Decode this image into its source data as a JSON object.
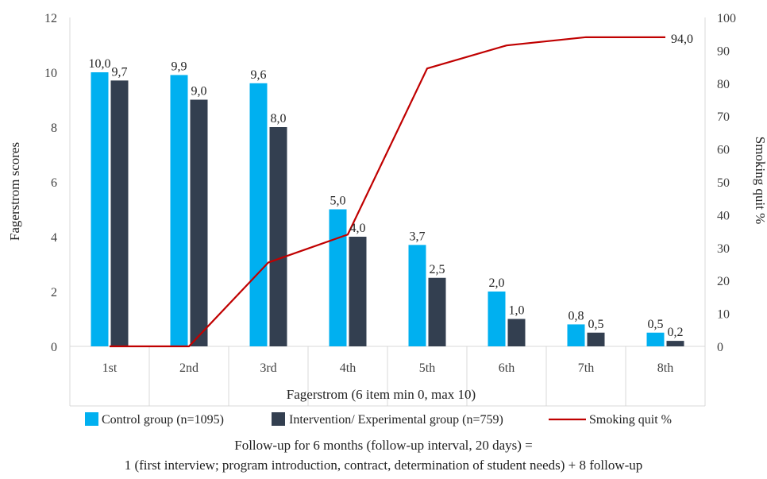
{
  "chart_data": {
    "type": "bar",
    "categories": [
      "1st",
      "2nd",
      "3rd",
      "4th",
      "5th",
      "6th",
      "7th",
      "8th"
    ],
    "series": [
      {
        "name": "Control group (n=1095)",
        "kind": "bar",
        "axis": "left",
        "color": "#00B0F0",
        "values": [
          10.0,
          9.9,
          9.6,
          5.0,
          3.7,
          2.0,
          0.8,
          0.5
        ],
        "labels": [
          "10,0",
          "9,9",
          "9,6",
          "5,0",
          "3,7",
          "2,0",
          "0,8",
          "0,5"
        ]
      },
      {
        "name": "Intervention/ Experimental group (n=759)",
        "kind": "bar",
        "axis": "left",
        "color": "#333F50",
        "values": [
          9.7,
          9.0,
          8.0,
          4.0,
          2.5,
          1.0,
          0.5,
          0.2
        ],
        "labels": [
          "9,7",
          "9,0",
          "8,0",
          "4,0",
          "2,5",
          "1,0",
          "0,5",
          "0,2"
        ]
      },
      {
        "name": "Smoking quit %",
        "kind": "line",
        "axis": "right",
        "color": "#C00000",
        "values": [
          0,
          0,
          25.5,
          34,
          84.5,
          91.5,
          94,
          94
        ],
        "end_label": "94,0"
      }
    ],
    "xlabel": "Fagerstrom  (6 item min 0, max 10)",
    "ylabel": "Fagerstrom scores",
    "ylabel_right": "Smoking quit %",
    "ylim": [
      0,
      12
    ],
    "yticks": [
      "0",
      "2",
      "4",
      "6",
      "8",
      "10",
      "12"
    ],
    "ylim_right": [
      0,
      100
    ],
    "yticks_right": [
      "0",
      "10",
      "20",
      "30",
      "40",
      "50",
      "60",
      "70",
      "80",
      "90",
      "100"
    ],
    "grid": false,
    "legend": "bottom"
  },
  "caption": {
    "line1": "Follow-up for 6 months (follow-up interval, 20 days) =",
    "line2": "1 (first interview; program introduction, contract, determination of student needs) + 8 follow-up"
  }
}
